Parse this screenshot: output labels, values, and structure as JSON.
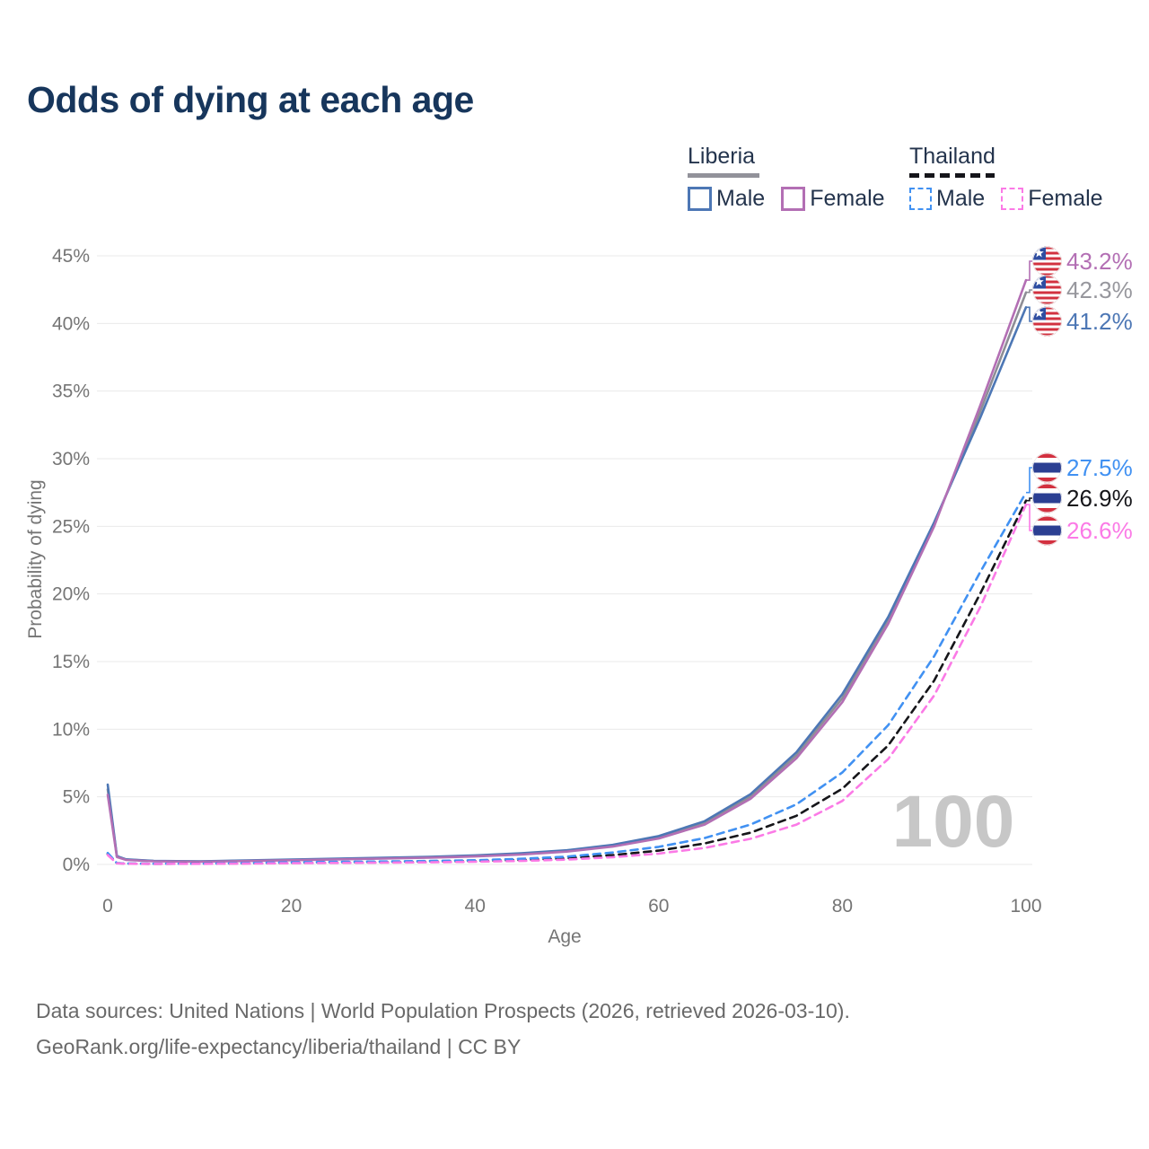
{
  "header": {
    "title": "Odds of dying at each age"
  },
  "legend": {
    "groups": [
      {
        "label": "Liberia",
        "line_style": "solid",
        "items": [
          {
            "label": "Male",
            "color": "#4d77b5"
          },
          {
            "label": "Female",
            "color": "#b36fb4"
          }
        ]
      },
      {
        "label": "Thailand",
        "line_style": "dashed",
        "items": [
          {
            "label": "Male",
            "color": "#4191f2"
          },
          {
            "label": "Female",
            "color": "#fb7ae6"
          }
        ]
      }
    ]
  },
  "chart_data": {
    "type": "line",
    "title": "Odds of dying at each age",
    "xlabel": "Age",
    "ylabel": "Probability of dying",
    "xlim": [
      0,
      100
    ],
    "ylim": [
      0,
      45
    ],
    "grid": "horizontal-only",
    "x_ticks": [
      0,
      20,
      40,
      60,
      80,
      100
    ],
    "y_tick_values": [
      0,
      5,
      10,
      15,
      20,
      25,
      30,
      35,
      40,
      45
    ],
    "y_tick_labels": [
      "0%",
      "5%",
      "10%",
      "15%",
      "20%",
      "25%",
      "30%",
      "35%",
      "40%",
      "45%"
    ],
    "watermark_age": "100",
    "x": [
      0,
      1,
      2,
      5,
      10,
      15,
      20,
      25,
      30,
      35,
      40,
      45,
      50,
      55,
      60,
      65,
      70,
      75,
      80,
      85,
      90,
      95,
      100
    ],
    "series": [
      {
        "key": "liberia_both",
        "name": "Liberia Both sexes",
        "color": "#8e8e96",
        "dash": false,
        "end_label": "42.3%",
        "end_label_color": "#97979d",
        "flag": "liberia",
        "values": [
          5.55,
          0.59,
          0.36,
          0.25,
          0.22,
          0.27,
          0.34,
          0.4,
          0.46,
          0.53,
          0.63,
          0.78,
          1.0,
          1.39,
          2.01,
          3.08,
          5.03,
          8.08,
          12.3,
          18.05,
          25.15,
          33.45,
          42.3
        ]
      },
      {
        "key": "liberia_male",
        "name": "Liberia Male",
        "color": "#4d77b5",
        "dash": false,
        "end_label": "41.2%",
        "end_label_color": "#4d77b5",
        "flag": "liberia",
        "values": [
          5.9,
          0.62,
          0.38,
          0.26,
          0.23,
          0.29,
          0.36,
          0.43,
          0.49,
          0.56,
          0.67,
          0.82,
          1.05,
          1.45,
          2.1,
          3.2,
          5.2,
          8.3,
          12.6,
          18.3,
          25.3,
          33.0,
          41.2
        ]
      },
      {
        "key": "liberia_female",
        "name": "Liberia Female",
        "color": "#b36fb4",
        "dash": false,
        "end_label": "43.2%",
        "end_label_color": "#b36fb4",
        "flag": "liberia",
        "values": [
          5.15,
          0.55,
          0.33,
          0.23,
          0.2,
          0.25,
          0.31,
          0.37,
          0.43,
          0.5,
          0.59,
          0.73,
          0.95,
          1.32,
          1.92,
          2.95,
          4.85,
          7.85,
          12.0,
          17.8,
          25.0,
          33.9,
          43.2
        ]
      },
      {
        "key": "thailand_both",
        "name": "Thailand Both sexes",
        "color": "#16161a",
        "dash": true,
        "end_label": "26.9%",
        "end_label_color": "#16161a",
        "flag": "thailand",
        "values": [
          0.78,
          0.09,
          0.06,
          0.045,
          0.05,
          0.08,
          0.12,
          0.15,
          0.17,
          0.21,
          0.25,
          0.33,
          0.46,
          0.69,
          1.02,
          1.55,
          2.35,
          3.6,
          5.6,
          8.8,
          13.6,
          20.0,
          26.9
        ]
      },
      {
        "key": "thailand_male",
        "name": "Thailand Male",
        "color": "#4191f2",
        "dash": true,
        "end_label": "27.5%",
        "end_label_color": "#4191f2",
        "flag": "thailand",
        "values": [
          0.85,
          0.1,
          0.07,
          0.05,
          0.06,
          0.1,
          0.16,
          0.19,
          0.22,
          0.26,
          0.31,
          0.42,
          0.58,
          0.88,
          1.3,
          1.95,
          2.95,
          4.45,
          6.8,
          10.3,
          15.4,
          21.6,
          27.5
        ]
      },
      {
        "key": "thailand_female",
        "name": "Thailand Female",
        "color": "#fb7ae6",
        "dash": true,
        "end_label": "26.6%",
        "end_label_color": "#fb7ae6",
        "flag": "thailand",
        "values": [
          0.7,
          0.08,
          0.055,
          0.04,
          0.045,
          0.06,
          0.09,
          0.11,
          0.13,
          0.16,
          0.2,
          0.26,
          0.36,
          0.54,
          0.8,
          1.22,
          1.9,
          2.95,
          4.7,
          7.8,
          12.5,
          19.0,
          26.6
        ]
      }
    ]
  },
  "flags": {
    "liberia": {
      "red": "#d2313f",
      "blue": "#2e4da1",
      "white": "#ffffff"
    },
    "thailand": {
      "red": "#d3303f",
      "blue": "#2b3f92",
      "white": "#ffffff"
    }
  },
  "colors": {
    "grid": "#eaeaea",
    "axis_text": "#757575",
    "watermark": "#c7c7c7"
  },
  "footer": {
    "line1": "Data sources: United Nations | World Population Prospects (2026, retrieved 2026-03-10).",
    "line2": "GeoRank.org/life-expectancy/liberia/thailand | CC BY"
  }
}
